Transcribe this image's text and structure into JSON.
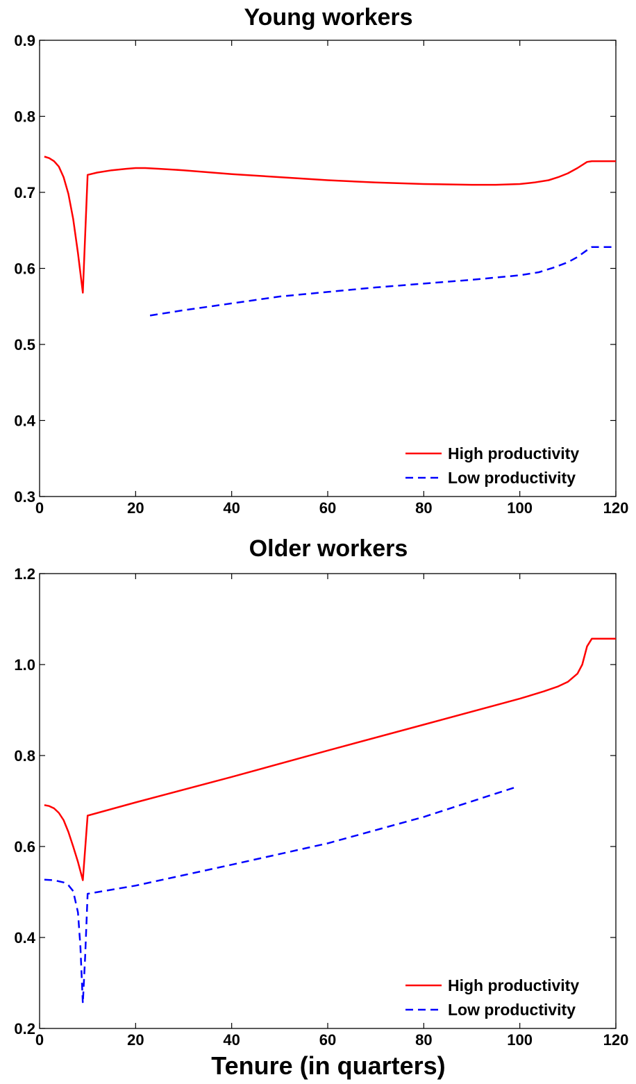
{
  "colors": {
    "high": "#ff0000",
    "low": "#0000ff",
    "axis": "#000000",
    "background": "#ffffff"
  },
  "chart_data": [
    {
      "type": "line",
      "title": "Young workers",
      "xlabel": "",
      "ylabel": "",
      "xlim": [
        0,
        120
      ],
      "ylim": [
        0.3,
        0.9
      ],
      "xticks": [
        0,
        20,
        40,
        60,
        80,
        100,
        120
      ],
      "xtick_labels": [
        "0",
        "20",
        "40",
        "60",
        "80",
        "100",
        "120"
      ],
      "yticks": [
        0.3,
        0.4,
        0.5,
        0.6,
        0.7,
        0.8,
        0.9
      ],
      "ytick_labels": [
        "0.3",
        "0.4",
        "0.5",
        "0.6",
        "0.7",
        "0.8",
        "0.9"
      ],
      "grid": false,
      "legend_position": "bottom-right",
      "series": [
        {
          "name": "High productivity",
          "style": "solid",
          "color": "#ff0000",
          "x": [
            1,
            2,
            3,
            4,
            5,
            6,
            7,
            8,
            9,
            10,
            12,
            15,
            18,
            20,
            22,
            25,
            30,
            40,
            50,
            60,
            70,
            80,
            90,
            95,
            100,
            103,
            106,
            108,
            110,
            112,
            114,
            115,
            117,
            120
          ],
          "y": [
            0.747,
            0.745,
            0.741,
            0.734,
            0.72,
            0.698,
            0.665,
            0.62,
            0.568,
            0.723,
            0.726,
            0.729,
            0.731,
            0.732,
            0.732,
            0.731,
            0.729,
            0.724,
            0.72,
            0.716,
            0.713,
            0.711,
            0.71,
            0.71,
            0.711,
            0.713,
            0.716,
            0.72,
            0.725,
            0.732,
            0.74,
            0.741,
            0.741,
            0.741
          ]
        },
        {
          "name": "Low productivity",
          "style": "dashed",
          "color": "#0000ff",
          "x": [
            23,
            30,
            40,
            50,
            60,
            70,
            80,
            90,
            100,
            104,
            107,
            110,
            112,
            114,
            115,
            117,
            120
          ],
          "y": [
            0.538,
            0.545,
            0.554,
            0.563,
            0.569,
            0.575,
            0.58,
            0.585,
            0.591,
            0.595,
            0.601,
            0.608,
            0.615,
            0.624,
            0.628,
            0.628,
            0.628
          ]
        }
      ]
    },
    {
      "type": "line",
      "title": "Older workers",
      "xlabel": "Tenure (in quarters)",
      "ylabel": "",
      "xlim": [
        0,
        120
      ],
      "ylim": [
        0.2,
        1.2
      ],
      "xticks": [
        0,
        20,
        40,
        60,
        80,
        100,
        120
      ],
      "xtick_labels": [
        "0",
        "20",
        "40",
        "60",
        "80",
        "100",
        "120"
      ],
      "yticks": [
        0.2,
        0.4,
        0.6,
        0.8,
        1.0,
        1.2
      ],
      "ytick_labels": [
        "0.2",
        "0.4",
        "0.6",
        "0.8",
        "1.0",
        "1.2"
      ],
      "grid": false,
      "legend_position": "bottom-right",
      "series": [
        {
          "name": "High productivity",
          "style": "solid",
          "color": "#ff0000",
          "x": [
            1,
            2,
            3,
            4,
            5,
            6,
            7,
            8,
            9,
            10,
            20,
            40,
            60,
            80,
            100,
            105,
            108,
            110,
            112,
            113,
            114,
            115,
            117,
            120
          ],
          "y": [
            0.691,
            0.689,
            0.684,
            0.674,
            0.658,
            0.632,
            0.6,
            0.566,
            0.526,
            0.668,
            0.697,
            0.753,
            0.811,
            0.868,
            0.925,
            0.941,
            0.952,
            0.962,
            0.98,
            1.0,
            1.04,
            1.057,
            1.057,
            1.057
          ]
        },
        {
          "name": "Low productivity",
          "style": "dashed",
          "color": "#0000ff",
          "x": [
            1,
            3,
            5,
            6,
            7,
            8,
            8.5,
            9,
            9.5,
            10,
            20,
            40,
            60,
            80,
            99
          ],
          "y": [
            0.527,
            0.526,
            0.521,
            0.515,
            0.502,
            0.455,
            0.38,
            0.255,
            0.36,
            0.496,
            0.514,
            0.56,
            0.607,
            0.665,
            0.73
          ]
        }
      ]
    }
  ]
}
